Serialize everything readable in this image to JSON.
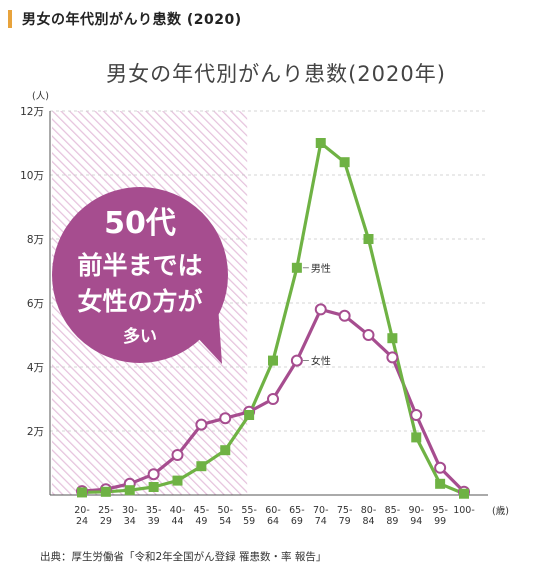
{
  "header": {
    "title": "男女の年代別がんり患数 (2020)",
    "accent": "#e8a33c"
  },
  "source": "出典：厚生労働省「令和2年全国がん登録 罹患数・率 報告」",
  "callout": {
    "lines": [
      "50代",
      "前半までは",
      "女性の方が",
      "多い"
    ],
    "color": "#a64d8f"
  },
  "chart_data": {
    "type": "line",
    "title": "男女の年代別がんり患数(2020年)",
    "ylabel_unit": "(人)",
    "xlabel_unit": "(歳)",
    "ylim": [
      0,
      120000
    ],
    "yticks": [
      {
        "value": 20000,
        "label": "2万"
      },
      {
        "value": 40000,
        "label": "4万"
      },
      {
        "value": 60000,
        "label": "6万"
      },
      {
        "value": 80000,
        "label": "8万"
      },
      {
        "value": 100000,
        "label": "10万"
      },
      {
        "value": 120000,
        "label": "12万"
      }
    ],
    "categories": [
      "20-\n24",
      "25-\n29",
      "30-\n34",
      "35-\n39",
      "40-\n44",
      "45-\n49",
      "50-\n54",
      "55-\n59",
      "60-\n64",
      "65-\n69",
      "70-\n74",
      "75-\n79",
      "80-\n84",
      "85-\n89",
      "90-\n94",
      "95-\n99",
      "100-"
    ],
    "highlight_range": {
      "from_category_index": 0,
      "to_category_index": 7,
      "color": "#e6c3dd"
    },
    "grid": true,
    "series": [
      {
        "name": "男性",
        "color": "#6fb244",
        "marker": "square",
        "values": [
          800,
          1000,
          1500,
          2500,
          4500,
          9000,
          14000,
          25000,
          42000,
          71000,
          110000,
          104000,
          80000,
          49000,
          18000,
          3500,
          400
        ]
      },
      {
        "name": "女性",
        "color": "#a64d8f",
        "marker": "circle",
        "values": [
          1200,
          1800,
          3500,
          6500,
          12500,
          22000,
          24000,
          26000,
          30000,
          42000,
          58000,
          56000,
          50000,
          43000,
          25000,
          8500,
          1000
        ]
      }
    ]
  }
}
